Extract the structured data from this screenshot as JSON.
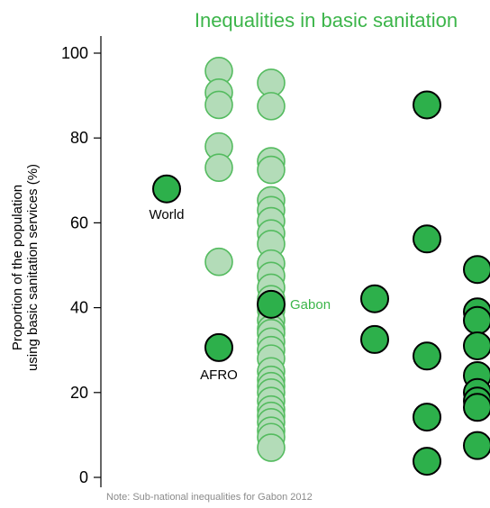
{
  "chart_data": {
    "type": "scatter",
    "title": "Inequalities in basic sanitation",
    "ylabel_line1": "Proportion of the population",
    "ylabel_line2": "using basic sanitation services (%)",
    "ylim": [
      0,
      100
    ],
    "yticks": [
      "0",
      "20",
      "40",
      "60",
      "80",
      "100"
    ],
    "note": "Note: Sub-national inequalities for Gabon  2012",
    "colors": {
      "accent": "#3cb54a",
      "dark_fill": "#2db04b",
      "light_fill": "#b3dcb8",
      "light_stroke": "#54bb5f",
      "dark_stroke": "#000000"
    },
    "annotations": {
      "world": "World",
      "afro": "AFRO",
      "gabon": "Gabon"
    },
    "series": [
      {
        "style": "dark",
        "values": [
          68.0
        ]
      },
      {
        "style": "light",
        "values": [
          95.8,
          90.7,
          87.8,
          78.0,
          73.0,
          50.8
        ]
      },
      {
        "style": "dark",
        "values": [
          30.6
        ]
      },
      {
        "style": "light",
        "values": [
          93.0,
          87.5,
          74.5,
          72.5,
          65.3,
          63.0,
          60.4,
          57.5,
          55.0,
          50.4,
          47.5,
          44.7,
          42.0,
          39.5,
          37.0,
          35.0,
          34.0,
          32.0,
          30.0,
          28.0,
          25.0,
          23.0,
          21.5,
          20.0,
          18.0,
          16.0,
          14.5,
          13.0,
          11.0,
          9.5,
          7.0
        ]
      },
      {
        "style": "dark",
        "values": [
          40.8
        ]
      },
      {
        "style": "dark",
        "values": [
          42.1,
          32.5
        ]
      },
      {
        "style": "dark",
        "values": [
          87.8,
          56.2,
          28.6,
          14.2,
          3.8
        ]
      },
      {
        "style": "dark",
        "values": [
          49.0,
          39.0,
          37.0,
          31.0,
          24.0,
          20.0,
          18.0,
          16.5,
          7.5
        ]
      }
    ]
  }
}
